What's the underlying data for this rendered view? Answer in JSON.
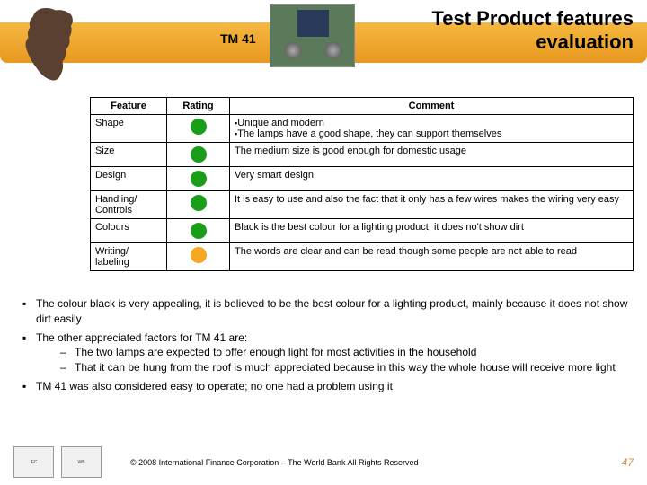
{
  "header": {
    "product_code": "TM 41",
    "title_line1": "Test Product features",
    "title_line2": "evaluation"
  },
  "colors": {
    "green": "#1a9e1a",
    "amber": "#f5a623",
    "orange_bar_top": "#f5b840",
    "orange_bar_bottom": "#e89820"
  },
  "table": {
    "headers": {
      "feature": "Feature",
      "rating": "Rating",
      "comment": "Comment"
    },
    "rows": [
      {
        "feature": "Shape",
        "rating_color": "#1a9e1a",
        "comment_lines": [
          "Unique and modern",
          "The lamps have a good shape, they can support themselves"
        ],
        "bulleted": true
      },
      {
        "feature": "Size",
        "rating_color": "#1a9e1a",
        "comment_lines": [
          "The medium size is good enough for domestic usage"
        ],
        "bulleted": false
      },
      {
        "feature": "Design",
        "rating_color": "#1a9e1a",
        "comment_lines": [
          "Very smart design"
        ],
        "bulleted": false
      },
      {
        "feature": "Handling/ Controls",
        "rating_color": "#1a9e1a",
        "comment_lines": [
          "It is easy to use and also the fact that it only has a few wires makes the wiring very easy"
        ],
        "bulleted": false
      },
      {
        "feature": "Colours",
        "rating_color": "#1a9e1a",
        "comment_lines": [
          "Black is the best colour for a lighting product; it does no't show dirt"
        ],
        "bulleted": false
      },
      {
        "feature": "Writing/ labeling",
        "rating_color": "#f5a623",
        "comment_lines": [
          "The words are clear and can be read though some people are not able to read"
        ],
        "bulleted": false
      }
    ]
  },
  "bullets": {
    "items": [
      {
        "text": "The colour black is very appealing, it is believed to be the best colour for a lighting product, mainly because it does not show dirt easily"
      },
      {
        "text": "The other appreciated factors for TM 41 are:",
        "sub": [
          "The two lamps are expected to offer enough light for most activities in the household",
          "That it can be hung from the roof is much appreciated because in this way the whole house will receive more light"
        ]
      },
      {
        "text": "TM 41 was also considered easy to operate; no one had a problem using it"
      }
    ]
  },
  "footer": {
    "logo1": "IFC",
    "logo2": "WB",
    "copyright": "© 2008 International Finance Corporation – The World Bank All Rights Reserved",
    "page": "47"
  }
}
